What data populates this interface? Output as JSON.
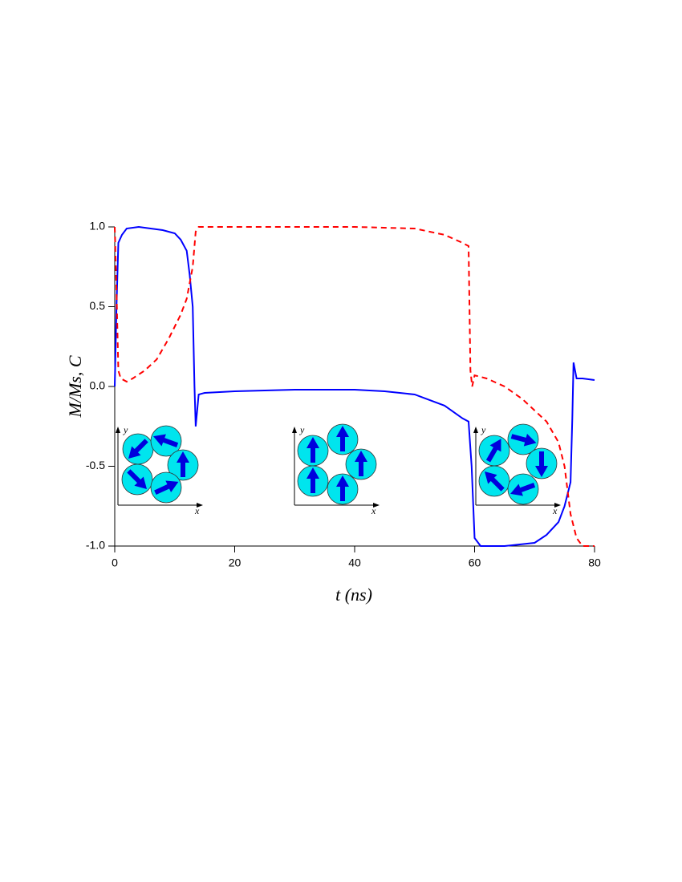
{
  "chart_data": {
    "type": "line",
    "x_label": "t (ns)",
    "y_label": "M/Ms, C",
    "xlim": [
      0,
      80
    ],
    "xticks": [
      0,
      20,
      40,
      60,
      80
    ],
    "ylim": [
      -1,
      1
    ],
    "yticks": [
      {
        "value": -1,
        "label": "-1.0"
      },
      -0.5,
      {
        "value": 0,
        "label": "0.0"
      },
      0.5,
      {
        "value": 1,
        "label": "1.0"
      }
    ],
    "series": [
      {
        "color": "#0000ff",
        "dash": false,
        "x": [
          0,
          0.3,
          0.6,
          1.2,
          2,
          4,
          6,
          8,
          10,
          11,
          12,
          12.5,
          13,
          13.3,
          13.5,
          14,
          15,
          20,
          30,
          40,
          45,
          50,
          55,
          58,
          59,
          59.5,
          60,
          61,
          65,
          70,
          72,
          74,
          75,
          76,
          76.3,
          76.5,
          77,
          78,
          80
        ],
        "values": [
          0,
          0.5,
          0.9,
          0.95,
          0.99,
          1,
          0.99,
          0.98,
          0.96,
          0.92,
          0.85,
          0.7,
          0.5,
          0,
          -0.25,
          -0.05,
          -0.04,
          -0.03,
          -0.02,
          -0.02,
          -0.03,
          -0.05,
          -0.12,
          -0.2,
          -0.22,
          -0.5,
          -0.95,
          -1,
          -1,
          -0.98,
          -0.93,
          -0.85,
          -0.75,
          -0.6,
          -0.2,
          0.15,
          0.05,
          0.05,
          0.04
        ]
      },
      {
        "color": "#ff0000",
        "dash": true,
        "x": [
          0,
          0.3,
          0.6,
          1,
          2,
          3,
          5,
          7,
          9,
          11,
          12,
          13,
          13.5,
          14,
          20,
          40,
          50,
          55,
          58,
          59,
          59.3,
          59.6,
          60,
          62,
          65,
          68,
          70,
          72,
          74,
          75,
          76,
          77,
          78,
          80
        ],
        "values": [
          1,
          0.6,
          0.1,
          0.05,
          0.03,
          0.05,
          0.1,
          0.17,
          0.3,
          0.45,
          0.55,
          0.75,
          0.97,
          1,
          1,
          1,
          0.99,
          0.95,
          0.9,
          0.88,
          0.1,
          0,
          0.07,
          0.05,
          0,
          -0.08,
          -0.15,
          -0.22,
          -0.35,
          -0.5,
          -0.8,
          -0.95,
          -1,
          -1
        ]
      }
    ],
    "insets": [
      {
        "x_label": "x",
        "y_label": "y"
      },
      {
        "x_label": "x",
        "y_label": "y"
      },
      {
        "x_label": "x",
        "y_label": "y"
      }
    ]
  }
}
